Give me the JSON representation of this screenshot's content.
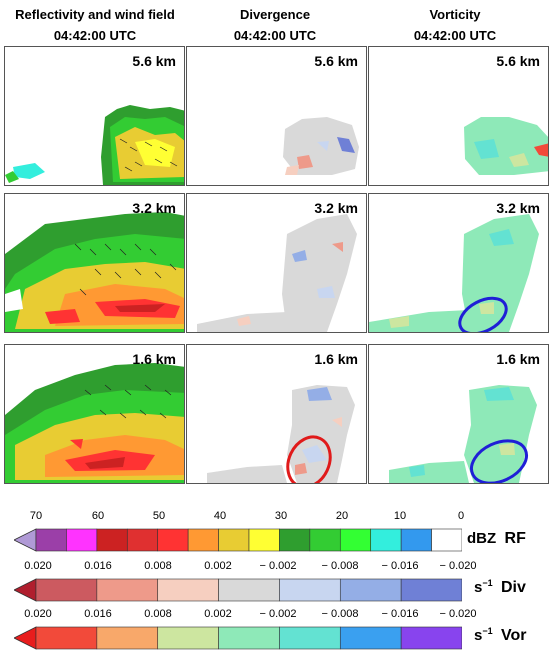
{
  "columns": [
    {
      "title": "Reflectivity and wind field",
      "time": "04:42:00 UTC"
    },
    {
      "title": "Divergence",
      "time": "04:42:00 UTC"
    },
    {
      "title": "Vorticity",
      "time": "04:42:00 UTC"
    }
  ],
  "heights": [
    "5.6 km",
    "3.2 km",
    "1.6 km"
  ],
  "colorbars": {
    "rf": {
      "ticks": [
        "70",
        "60",
        "50",
        "40",
        "30",
        "20",
        "10",
        "0"
      ],
      "unit": "dBZ",
      "name": "RF",
      "colors": [
        "#9b3fa8",
        "#ff33ff",
        "#cc2222",
        "#e03030",
        "#ff3333",
        "#ff9933",
        "#e8cc33",
        "#ffff33",
        "#2f9e2f",
        "#33cc33",
        "#33ff33",
        "#33eedd",
        "#3399ee",
        "#ffffff"
      ],
      "arrow_color": "#b09ad6"
    },
    "div": {
      "ticks": [
        "0.020",
        "0.016",
        "0.008",
        "0.002",
        "− 0.002",
        "− 0.008",
        "− 0.016",
        "− 0.020"
      ],
      "unit": "s",
      "unit_exp": "−1",
      "name": "Div",
      "colors": [
        "#cc5a60",
        "#ee9a8a",
        "#f6cfc0",
        "#d9d9d9",
        "#c8d6f0",
        "#94aee6",
        "#6f80d6"
      ],
      "arrow_color": "#b01e2e"
    },
    "vor": {
      "ticks": [
        "0.020",
        "0.016",
        "0.008",
        "0.002",
        "− 0.002",
        "− 0.008",
        "− 0.016",
        "− 0.020"
      ],
      "unit": "s",
      "unit_exp": "−1",
      "name": "Vor",
      "colors": [
        "#f24a3a",
        "#f8a86a",
        "#cde6a0",
        "#8ee9b8",
        "#63e2d2",
        "#3aa0f0",
        "#8844ee"
      ],
      "arrow_color": "#e81d1d"
    }
  }
}
